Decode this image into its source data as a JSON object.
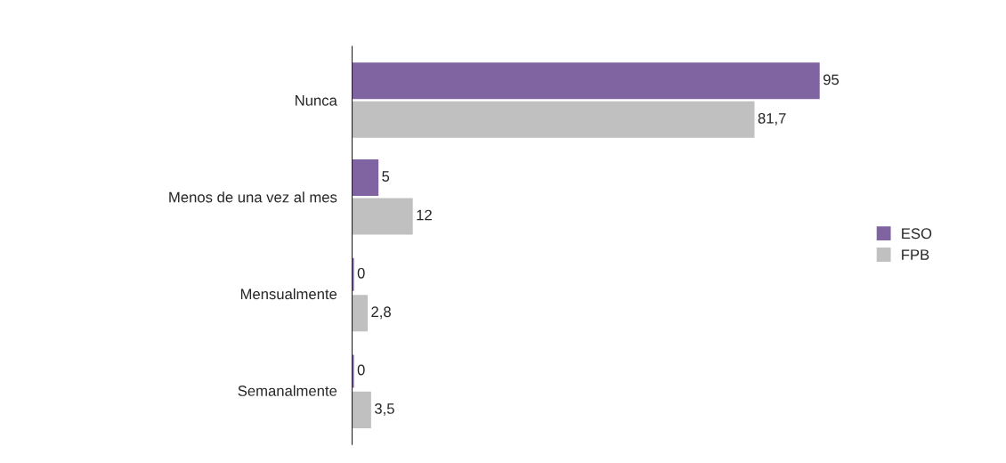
{
  "chart_data": {
    "type": "bar",
    "orientation": "horizontal",
    "categories": [
      "Nunca",
      "Menos de una vez al mes",
      "Mensualmente",
      "Semanalmente"
    ],
    "series": [
      {
        "name": "ESO",
        "color": "#8064a2",
        "values": [
          95,
          5,
          0,
          0
        ],
        "value_labels": [
          "95",
          "5",
          "0",
          "0"
        ]
      },
      {
        "name": "FPB",
        "color": "#c0c0c0",
        "values": [
          81.7,
          12,
          2.8,
          3.5
        ],
        "value_labels": [
          "81,7",
          "12",
          "2,8",
          "3,5"
        ]
      }
    ],
    "legend": "right"
  }
}
